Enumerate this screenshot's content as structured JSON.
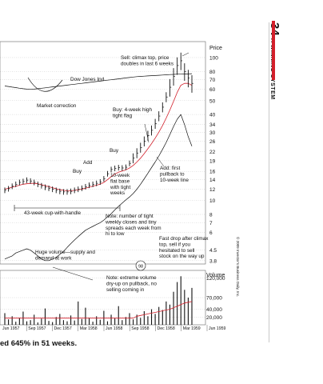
{
  "page": {
    "page_number": "34",
    "running_head": "A WINNING SYSTEM",
    "copyright": "© 2009 Investor's Business Daily, Inc.",
    "caption": "ed 645% in 51 weeks."
  },
  "chart_data": {
    "type": "bar",
    "price_panel": {
      "axis_title": "Price",
      "scale": "log",
      "y_ticks": [
        3.8,
        4.5,
        6,
        7,
        8,
        10,
        12,
        14,
        16,
        19,
        22,
        26,
        30,
        34,
        40,
        50,
        60,
        70,
        80,
        100
      ],
      "y_tick_labels": [
        "3.8",
        "4.5",
        "6",
        "7",
        "8",
        "10",
        "12",
        "14",
        "16",
        "19",
        "22",
        "26",
        "30",
        "34",
        "40",
        "50",
        "60",
        "70",
        "80",
        "100"
      ],
      "series": [
        {
          "name": "",
          "kind": "weekly-price-bars",
          "values": [
            11.8,
            12.1,
            12.6,
            13.0,
            13.4,
            13.6,
            13.9,
            13.7,
            13.4,
            13.0,
            12.7,
            12.4,
            12.2,
            12.0,
            11.8,
            11.6,
            11.5,
            11.5,
            11.6,
            11.8,
            12.0,
            12.2,
            12.5,
            12.8,
            13.0,
            13.2,
            13.5,
            14.2,
            15.4,
            16.5,
            16.8,
            17.0,
            16.9,
            17.1,
            18.2,
            19.8,
            21.5,
            23.5,
            26.0,
            28.5,
            31.0,
            34.5,
            39.0,
            45.0,
            53.0,
            62.0,
            74.0,
            88.0,
            95.0,
            80.0,
            72.0,
            66.0
          ]
        },
        {
          "name": "",
          "kind": "moving-average-10-week",
          "values": [
            12.0,
            12.2,
            12.4,
            12.6,
            12.8,
            13.0,
            13.1,
            13.2,
            13.2,
            13.1,
            12.9,
            12.7,
            12.5,
            12.3,
            12.1,
            11.9,
            11.8,
            11.7,
            11.7,
            11.8,
            11.9,
            12.0,
            12.2,
            12.4,
            12.6,
            12.8,
            13.0,
            13.4,
            14.0,
            14.7,
            15.3,
            15.8,
            16.1,
            16.4,
            16.9,
            17.6,
            18.6,
            19.8,
            21.3,
            23.0,
            25.0,
            27.3,
            30.1,
            33.5,
            37.8,
            43.0,
            49.5,
            57.0,
            64.0,
            66.0,
            66.0,
            64.0
          ]
        },
        {
          "name": "",
          "kind": "relative-strength-line",
          "values": [
            3.9,
            4.0,
            4.1,
            4.3,
            4.4,
            4.5,
            4.6,
            4.5,
            4.3,
            4.1,
            3.9,
            3.8,
            3.8,
            3.9,
            4.0,
            4.2,
            4.4,
            4.7,
            5.0,
            5.3,
            5.6,
            5.9,
            6.2,
            6.4,
            6.6,
            6.8,
            7.0,
            7.3,
            7.7,
            8.1,
            8.6,
            9.1,
            9.6,
            10.1,
            10.6,
            11.2,
            12.0,
            13.0,
            14.2,
            15.5,
            17.0,
            18.6,
            20.5,
            22.8,
            25.5,
            29.0,
            33.0,
            37.0,
            40.0,
            34.0,
            28.0,
            24.0
          ]
        },
        {
          "name": "Dow Jones Ind.",
          "kind": "market-index",
          "values": [
            76,
            74,
            71,
            69,
            66,
            64,
            62,
            61,
            62,
            64,
            66,
            68,
            70,
            72,
            74,
            76,
            78,
            80,
            82,
            84,
            86,
            88,
            90,
            92,
            94,
            96,
            98,
            100,
            102,
            104,
            106,
            108,
            110,
            112,
            114,
            116,
            118,
            119,
            120,
            121,
            122,
            123,
            124,
            125,
            126,
            127,
            128,
            129,
            129,
            130,
            130,
            131
          ]
        }
      ]
    },
    "volume_panel": {
      "axis_title": "Volume",
      "y_ticks": [
        20000,
        40000,
        70000,
        120000
      ],
      "y_tick_labels": [
        "20,000",
        "40,000",
        "70,000",
        "120,000"
      ],
      "series": [
        {
          "name": "",
          "kind": "weekly-volume-bars",
          "values": [
            30000,
            14000,
            22000,
            8000,
            18000,
            34000,
            9000,
            12000,
            26000,
            6000,
            16000,
            42000,
            10000,
            7000,
            20000,
            28000,
            12000,
            9000,
            24000,
            11000,
            60000,
            15000,
            44000,
            18000,
            8000,
            22000,
            13000,
            36000,
            9000,
            26000,
            17000,
            48000,
            12000,
            20000,
            30000,
            14000,
            26000,
            18000,
            35000,
            22000,
            40000,
            28000,
            46000,
            38000,
            60000,
            52000,
            85000,
            110000,
            125000,
            90000,
            70000,
            95000
          ]
        },
        {
          "name": "",
          "kind": "volume-average",
          "values": [
            17000,
            17000,
            17000,
            17000,
            17000,
            17000,
            17000,
            17000,
            17000,
            17000,
            17000,
            17000,
            17000,
            17000,
            17000,
            17000,
            17000,
            17000,
            17000,
            17000,
            17000,
            17000,
            17000,
            17000,
            17000,
            17000,
            17000,
            17000,
            17000,
            17000,
            17000,
            17000,
            17000,
            17000,
            17000,
            17000,
            22000,
            24000,
            26000,
            28000,
            30000,
            32000,
            34000,
            36000,
            38000,
            40000,
            44000,
            48000,
            52000,
            56000,
            58000,
            60000
          ]
        }
      ]
    },
    "x_labels": [
      "Jun 1957",
      "Sep 1957",
      "Dec 1957",
      "Mar 1958",
      "Jun 1958",
      "Sep 1958",
      "Dec 1958",
      "Mar 1959",
      "Jun 1959"
    ],
    "annotations": {
      "climax": "Sell: climax top, price doubles in last 6 weeks",
      "dow": "Dow Jones Ind.",
      "correction": "Market correction",
      "flag": "Buy: 4-week high tight flag",
      "buy3": "Buy",
      "add1": "Add",
      "buy1": "Buy",
      "add2": "Add: first pullback to 10-week line",
      "flatbase": "10-week flat base with tight weeks",
      "cup": "43-week cup-with-handle",
      "tight": "Note: number of tight weekly closes and tiny spreads each week from hi to low",
      "drop": "Fast drop after climax top, sell if you hesitated to sell stock on the way up",
      "huge": "Huge volume—supply and demand at work",
      "dryup": "Note: extreme volume dry-up on pullback, no selling coming in",
      "rating": "98"
    }
  }
}
